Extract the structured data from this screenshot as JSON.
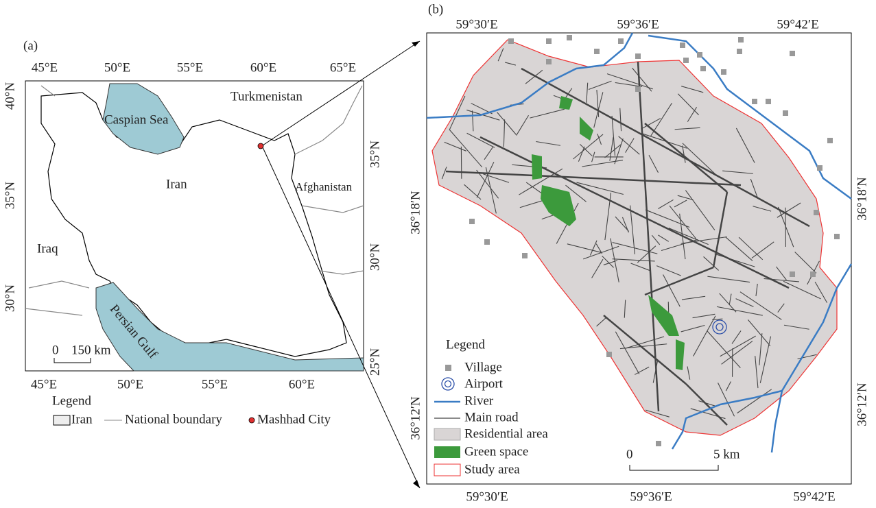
{
  "panel_a": {
    "label": "(a)",
    "top_ticks": [
      "45°E",
      "50°E",
      "55°E",
      "60°E",
      "65°E"
    ],
    "bottom_ticks": [
      "45°E",
      "50°E",
      "55°E",
      "60°E"
    ],
    "left_ticks": [
      "40°N",
      "35°N",
      "30°N"
    ],
    "right_ticks": [
      "35°N",
      "30°N",
      "25°N"
    ],
    "places": [
      "Caspian Sea",
      "Turkmenistan",
      "Iran",
      "Afghanistan",
      "Iraq",
      "Persian Gulf"
    ],
    "scale_bar": [
      "0",
      "150 km"
    ],
    "legend": {
      "title": "Legend",
      "items": [
        "Iran",
        "National boundary",
        "Mashhad City"
      ]
    }
  },
  "panel_b": {
    "label": "(b)",
    "top_ticks": [
      "59°30′E",
      "59°36′E",
      "59°42′E"
    ],
    "bottom_ticks": [
      "59°30′E",
      "59°36′E",
      "59°42′E"
    ],
    "left_ticks": [
      "36°18′N",
      "36°12′N"
    ],
    "right_ticks": [
      "36°18′N",
      "36°12′N"
    ],
    "scale_bar": [
      "0",
      "5 km"
    ],
    "legend": {
      "title": "Legend",
      "items": [
        "Village",
        "Airport",
        "River",
        "Main road",
        "Residential area",
        "Green space",
        "Study area"
      ]
    }
  }
}
